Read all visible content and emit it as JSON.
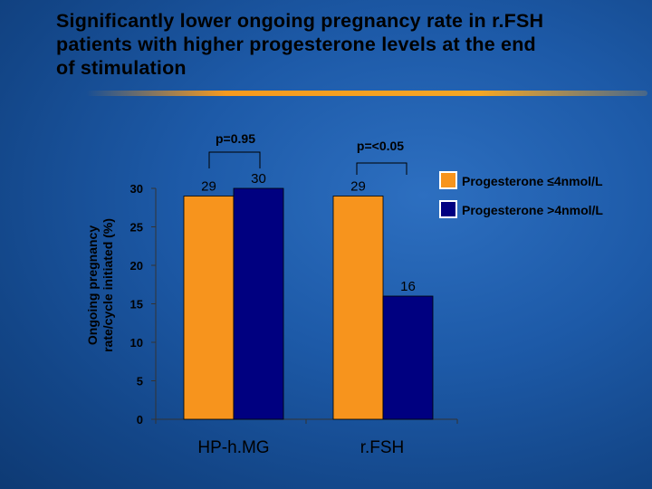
{
  "title_lines": [
    "Significantly lower ongoing pregnancy rate in r.FSH",
    "patients with higher progesterone levels at the end",
    "of stimulation"
  ],
  "colors": {
    "orange": "#f7941d",
    "navy": "#000080"
  },
  "chart_data": {
    "type": "bar",
    "categories": [
      "HP-h.MG",
      "r.FSH"
    ],
    "series": [
      {
        "name": "Progesterone ≤4nmol/L",
        "values": [
          29,
          29
        ]
      },
      {
        "name": "Progesterone >4nmol/L",
        "values": [
          30,
          16
        ]
      }
    ],
    "ylim": [
      0,
      30
    ],
    "yticks": [
      0,
      5,
      10,
      15,
      20,
      25,
      30
    ],
    "ylabel_lines": [
      "Ongoing pregnancy",
      "rate/cycle initiated (%)"
    ],
    "xlabel": "",
    "legend_position": "top-right",
    "annotations": [
      "p=0.95",
      "p=<0.05"
    ]
  }
}
